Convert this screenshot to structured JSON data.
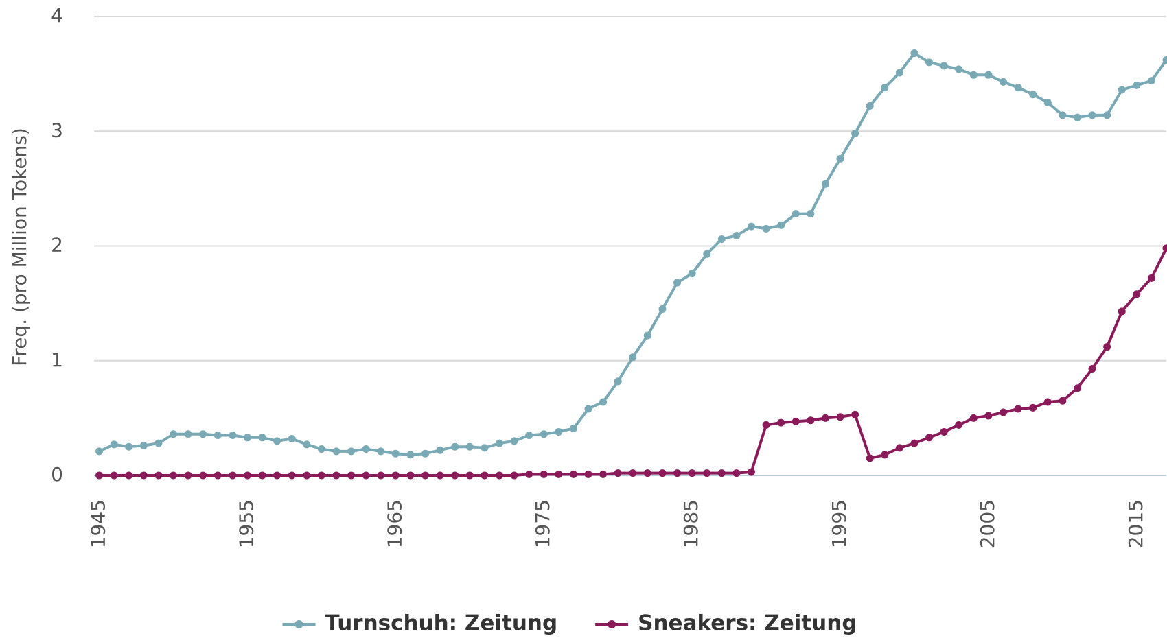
{
  "chart_data": {
    "type": "line",
    "y_label": "Freq. (pro Million Tokens)",
    "x": [
      1945,
      1946,
      1947,
      1948,
      1949,
      1950,
      1951,
      1952,
      1953,
      1954,
      1955,
      1956,
      1957,
      1958,
      1959,
      1960,
      1961,
      1962,
      1963,
      1964,
      1965,
      1966,
      1967,
      1968,
      1969,
      1970,
      1971,
      1972,
      1973,
      1974,
      1975,
      1976,
      1977,
      1978,
      1979,
      1980,
      1981,
      1982,
      1983,
      1984,
      1985,
      1986,
      1987,
      1988,
      1989,
      1990,
      1991,
      1992,
      1993,
      1994,
      1995,
      1996,
      1997,
      1998,
      1999,
      2000,
      2001,
      2002,
      2003,
      2004,
      2005,
      2006,
      2007,
      2008,
      2009,
      2010,
      2011,
      2012,
      2013,
      2014,
      2015,
      2016,
      2017
    ],
    "series": [
      {
        "name": "Turnschuh: Zeitung",
        "color": "#78a9b5",
        "values": [
          0.21,
          0.27,
          0.25,
          0.26,
          0.28,
          0.36,
          0.36,
          0.36,
          0.35,
          0.35,
          0.33,
          0.33,
          0.3,
          0.32,
          0.27,
          0.23,
          0.21,
          0.21,
          0.23,
          0.21,
          0.19,
          0.18,
          0.19,
          0.22,
          0.25,
          0.25,
          0.24,
          0.28,
          0.3,
          0.35,
          0.36,
          0.38,
          0.41,
          0.58,
          0.64,
          0.82,
          1.03,
          1.22,
          1.45,
          1.68,
          1.76,
          1.93,
          2.06,
          2.09,
          2.17,
          2.15,
          2.18,
          2.28,
          2.28,
          2.54,
          2.76,
          2.98,
          3.22,
          3.38,
          3.51,
          3.68,
          3.6,
          3.57,
          3.54,
          3.49,
          3.49,
          3.43,
          3.38,
          3.32,
          3.25,
          3.14,
          3.12,
          3.14,
          3.14,
          3.36,
          3.4,
          3.44,
          3.62
        ]
      },
      {
        "name": "Sneakers: Zeitung",
        "color": "#8b1a5a",
        "values": [
          0,
          0,
          0,
          0,
          0,
          0,
          0,
          0,
          0,
          0,
          0,
          0,
          0,
          0,
          0,
          0,
          0,
          0,
          0,
          0,
          0,
          0,
          0,
          0,
          0,
          0,
          0,
          0,
          0,
          0.01,
          0.01,
          0.01,
          0.01,
          0.01,
          0.01,
          0.02,
          0.02,
          0.02,
          0.02,
          0.02,
          0.02,
          0.02,
          0.02,
          0.02,
          0.03,
          0.44,
          0.46,
          0.47,
          0.48,
          0.5,
          0.51,
          0.53,
          0.15,
          0.18,
          0.24,
          0.28,
          0.33,
          0.38,
          0.44,
          0.5,
          0.52,
          0.55,
          0.58,
          0.59,
          0.64,
          0.65,
          0.76,
          0.93,
          1.12,
          1.43,
          1.58,
          1.72,
          1.98
        ]
      }
    ],
    "xlim": [
      1944.65,
      2017
    ],
    "xticks": [
      1945,
      1955,
      1965,
      1975,
      1985,
      1995,
      2005,
      2015
    ],
    "ylim": [
      0,
      4
    ],
    "yticks": [
      0,
      1,
      2,
      3,
      4
    ],
    "grid": true
  }
}
